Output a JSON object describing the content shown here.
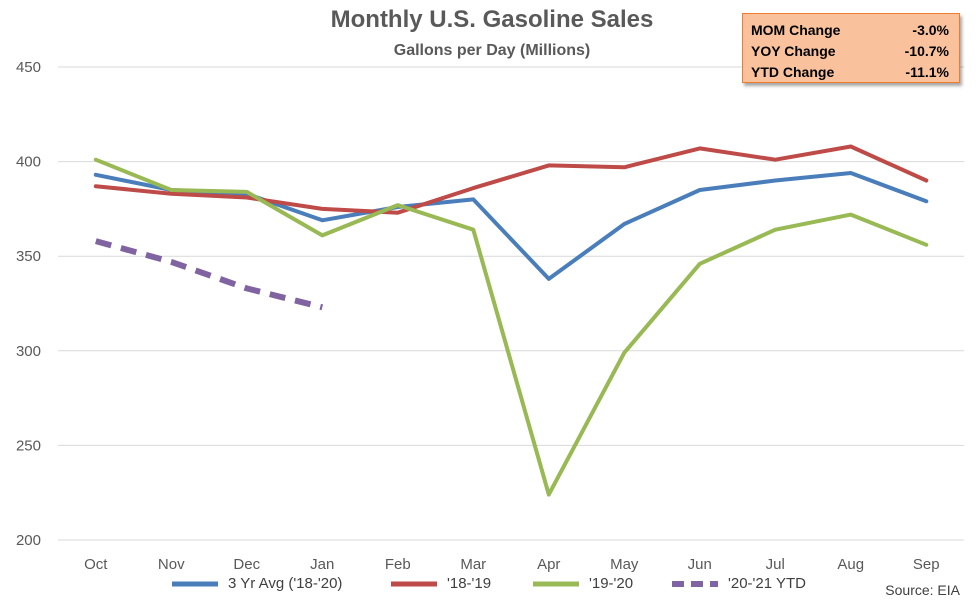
{
  "chart_data": {
    "type": "line",
    "title": "Monthly U.S. Gasoline Sales",
    "subtitle": "Gallons per Day (Millions)",
    "categories": [
      "Oct",
      "Nov",
      "Dec",
      "Jan",
      "Feb",
      "Mar",
      "Apr",
      "May",
      "Jun",
      "Jul",
      "Aug",
      "Sep"
    ],
    "ylim": [
      200,
      450
    ],
    "yticks": [
      200,
      250,
      300,
      350,
      400,
      450
    ],
    "grid": true,
    "legend_position": "bottom",
    "series": [
      {
        "name": "3 Yr Avg ('18-'20)",
        "color": "#4a7ebb",
        "dashed": false,
        "values": [
          393,
          385,
          383,
          369,
          376,
          380,
          338,
          367,
          385,
          390,
          394,
          379
        ]
      },
      {
        "name": "'18-'19",
        "color": "#be4b48",
        "dashed": false,
        "values": [
          387,
          383,
          381,
          375,
          373,
          386,
          398,
          397,
          407,
          401,
          408,
          390
        ]
      },
      {
        "name": "'19-'20",
        "color": "#98b954",
        "dashed": false,
        "values": [
          401,
          385,
          384,
          361,
          377,
          364,
          224,
          299,
          346,
          364,
          372,
          356
        ]
      },
      {
        "name": "'20-'21 YTD",
        "color": "#8064a2",
        "dashed": true,
        "values": [
          358,
          347,
          333,
          323,
          null,
          null,
          null,
          null,
          null,
          null,
          null,
          null
        ]
      }
    ]
  },
  "summary_box": {
    "rows": [
      {
        "label": "MOM Change",
        "value": "-3.0%"
      },
      {
        "label": "YOY Change",
        "value": "-10.7%"
      },
      {
        "label": "YTD Change",
        "value": "-11.1%"
      }
    ]
  },
  "source": "Source: EIA",
  "colors": {
    "grid": "#d9d9d9",
    "axis_text": "#595959",
    "summary_bg": "#f9c29c",
    "summary_border": "#ed7d31"
  }
}
